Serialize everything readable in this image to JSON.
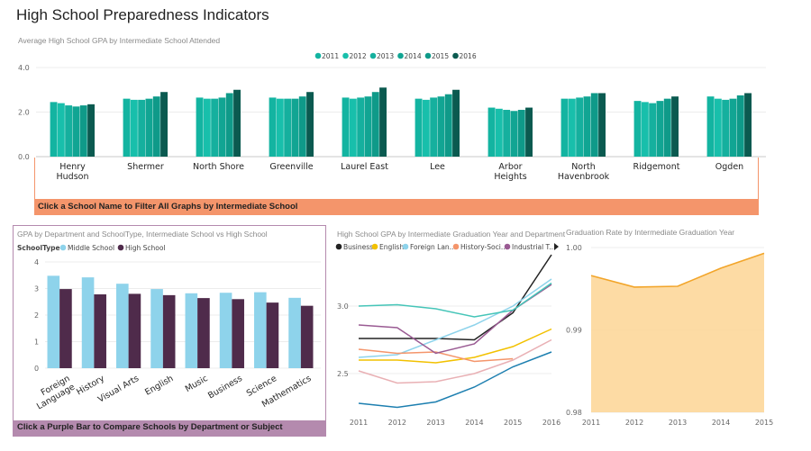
{
  "page_title": "High School Preparedness Indicators",
  "banners": {
    "school_filter": "Click a School Name to Filter All Graphs by Intermediate School",
    "compare": "Click a Purple Bar to Compare Schools by Department or Subject"
  },
  "colors": {
    "accent_orange": "#f4956b",
    "accent_purple": "#b48aae",
    "middle_school": "#8ed3eb",
    "high_school": "#4f2b4b",
    "grad_area": "#fdd79a",
    "grad_line": "#f2a52a"
  },
  "chart_data": [
    {
      "type": "bar",
      "title": "Average High School GPA by Intermediate School Attended",
      "ylim": [
        0,
        4
      ],
      "yticks": [
        "0.0",
        "2.0",
        "4.0"
      ],
      "grid": true,
      "legend_position": "top-center",
      "categories": [
        "Henry Hudson",
        "Shermer",
        "North Shore",
        "Greenville",
        "Laurel East",
        "Lee",
        "Arbor Heights",
        "North Havenbrook",
        "Ridgemont",
        "Ogden"
      ],
      "category_lines": [
        [
          "Henry",
          "Hudson"
        ],
        [
          "Shermer"
        ],
        [
          "North Shore"
        ],
        [
          "Greenville"
        ],
        [
          "Laurel East"
        ],
        [
          "Lee"
        ],
        [
          "Arbor",
          "Heights"
        ],
        [
          "North",
          "Havenbrook"
        ],
        [
          "Ridgemont"
        ],
        [
          "Ogden"
        ]
      ],
      "series": [
        {
          "name": "2011",
          "color": "#13b4a1",
          "values": [
            2.45,
            2.6,
            2.65,
            2.65,
            2.65,
            2.6,
            2.2,
            2.6,
            2.5,
            2.7
          ]
        },
        {
          "name": "2012",
          "color": "#18bfab",
          "values": [
            2.4,
            2.55,
            2.6,
            2.6,
            2.6,
            2.55,
            2.15,
            2.6,
            2.45,
            2.6
          ]
        },
        {
          "name": "2013",
          "color": "#15b09e",
          "values": [
            2.3,
            2.55,
            2.6,
            2.6,
            2.65,
            2.65,
            2.1,
            2.65,
            2.4,
            2.55
          ]
        },
        {
          "name": "2014",
          "color": "#11a593",
          "values": [
            2.25,
            2.6,
            2.65,
            2.6,
            2.7,
            2.7,
            2.05,
            2.7,
            2.5,
            2.6
          ]
        },
        {
          "name": "2015",
          "color": "#0f9a89",
          "values": [
            2.3,
            2.7,
            2.85,
            2.7,
            2.9,
            2.8,
            2.1,
            2.85,
            2.6,
            2.75
          ]
        },
        {
          "name": "2016",
          "color": "#0b5a50",
          "values": [
            2.35,
            2.9,
            3.0,
            2.9,
            3.1,
            3.0,
            2.2,
            2.85,
            2.7,
            2.85
          ]
        }
      ]
    },
    {
      "type": "bar",
      "title": "GPA by Department and SchoolType, Intermediate School vs High School",
      "legend_title": "SchoolType",
      "ylim": [
        0,
        4
      ],
      "yticks": [
        "0",
        "1",
        "2",
        "3",
        "4"
      ],
      "grid": true,
      "legend_position": "top-left",
      "categories": [
        "Foreign Language",
        "History",
        "Visual Arts",
        "English",
        "Music",
        "Business",
        "Science",
        "Mathematics"
      ],
      "category_lines": [
        [
          "Foreign",
          "Language"
        ],
        [
          "History"
        ],
        [
          "Visual Arts"
        ],
        [
          "English"
        ],
        [
          "Music"
        ],
        [
          "Business"
        ],
        [
          "Science"
        ],
        [
          "Mathematics"
        ]
      ],
      "series": [
        {
          "name": "Middle School",
          "color": "#8ed3eb",
          "values": [
            3.48,
            3.42,
            3.18,
            2.98,
            2.82,
            2.84,
            2.86,
            2.65
          ]
        },
        {
          "name": "High School",
          "color": "#4f2b4b",
          "values": [
            2.98,
            2.78,
            2.8,
            2.75,
            2.64,
            2.6,
            2.47,
            2.35
          ]
        }
      ]
    },
    {
      "type": "line",
      "title": "High School GPA by Intermediate Graduation Year and Department",
      "x": [
        "2011",
        "2012",
        "2013",
        "2014",
        "2015",
        "2016"
      ],
      "ylim": [
        2.2,
        3.4
      ],
      "yticks": [
        "2.5",
        "3.0"
      ],
      "grid": true,
      "legend_position": "top",
      "legend_labels": [
        "Business",
        "English",
        "Foreign Lan...",
        "History-Soci...",
        "Industrial T..."
      ],
      "series": [
        {
          "name": "Business",
          "color": "#222222",
          "values": [
            2.76,
            2.76,
            2.76,
            2.75,
            2.95,
            3.38
          ]
        },
        {
          "name": "English",
          "color": "#f2c100",
          "values": [
            2.6,
            2.6,
            2.58,
            2.62,
            2.7,
            2.83
          ]
        },
        {
          "name": "Foreign Lan...",
          "color": "#8ed3eb",
          "values": [
            2.62,
            2.64,
            2.75,
            2.86,
            3.0,
            3.2
          ]
        },
        {
          "name": "History-Soci...",
          "color": "#f4956b",
          "values": [
            2.68,
            2.65,
            2.66,
            2.59,
            2.61,
            null
          ]
        },
        {
          "name": "Industrial T...",
          "color": "#9a5b93",
          "values": [
            2.86,
            2.84,
            2.65,
            2.72,
            2.97,
            3.16
          ]
        },
        {
          "name": "",
          "color": "#45c5b8",
          "values": [
            3.0,
            3.01,
            2.98,
            2.92,
            2.97,
            3.17
          ]
        },
        {
          "name": "",
          "color": "#1d7fb0",
          "values": [
            2.28,
            2.25,
            2.29,
            2.4,
            2.55,
            2.66
          ]
        },
        {
          "name": "",
          "color": "#e9b0b4",
          "values": [
            2.52,
            2.43,
            2.44,
            2.5,
            2.6,
            2.75
          ]
        }
      ]
    },
    {
      "type": "area",
      "title": "Graduation Rate by Intermediate Graduation Year",
      "x": [
        "2011",
        "2012",
        "2013",
        "2014",
        "2015"
      ],
      "ylim": [
        0.98,
        1.0
      ],
      "yticks": [
        "0.98",
        "0.99",
        "1.00"
      ],
      "grid": true,
      "series": [
        {
          "name": "",
          "color": "#f2a52a",
          "values": [
            0.9966,
            0.9952,
            0.9953,
            0.9975,
            0.9993
          ]
        }
      ]
    }
  ]
}
